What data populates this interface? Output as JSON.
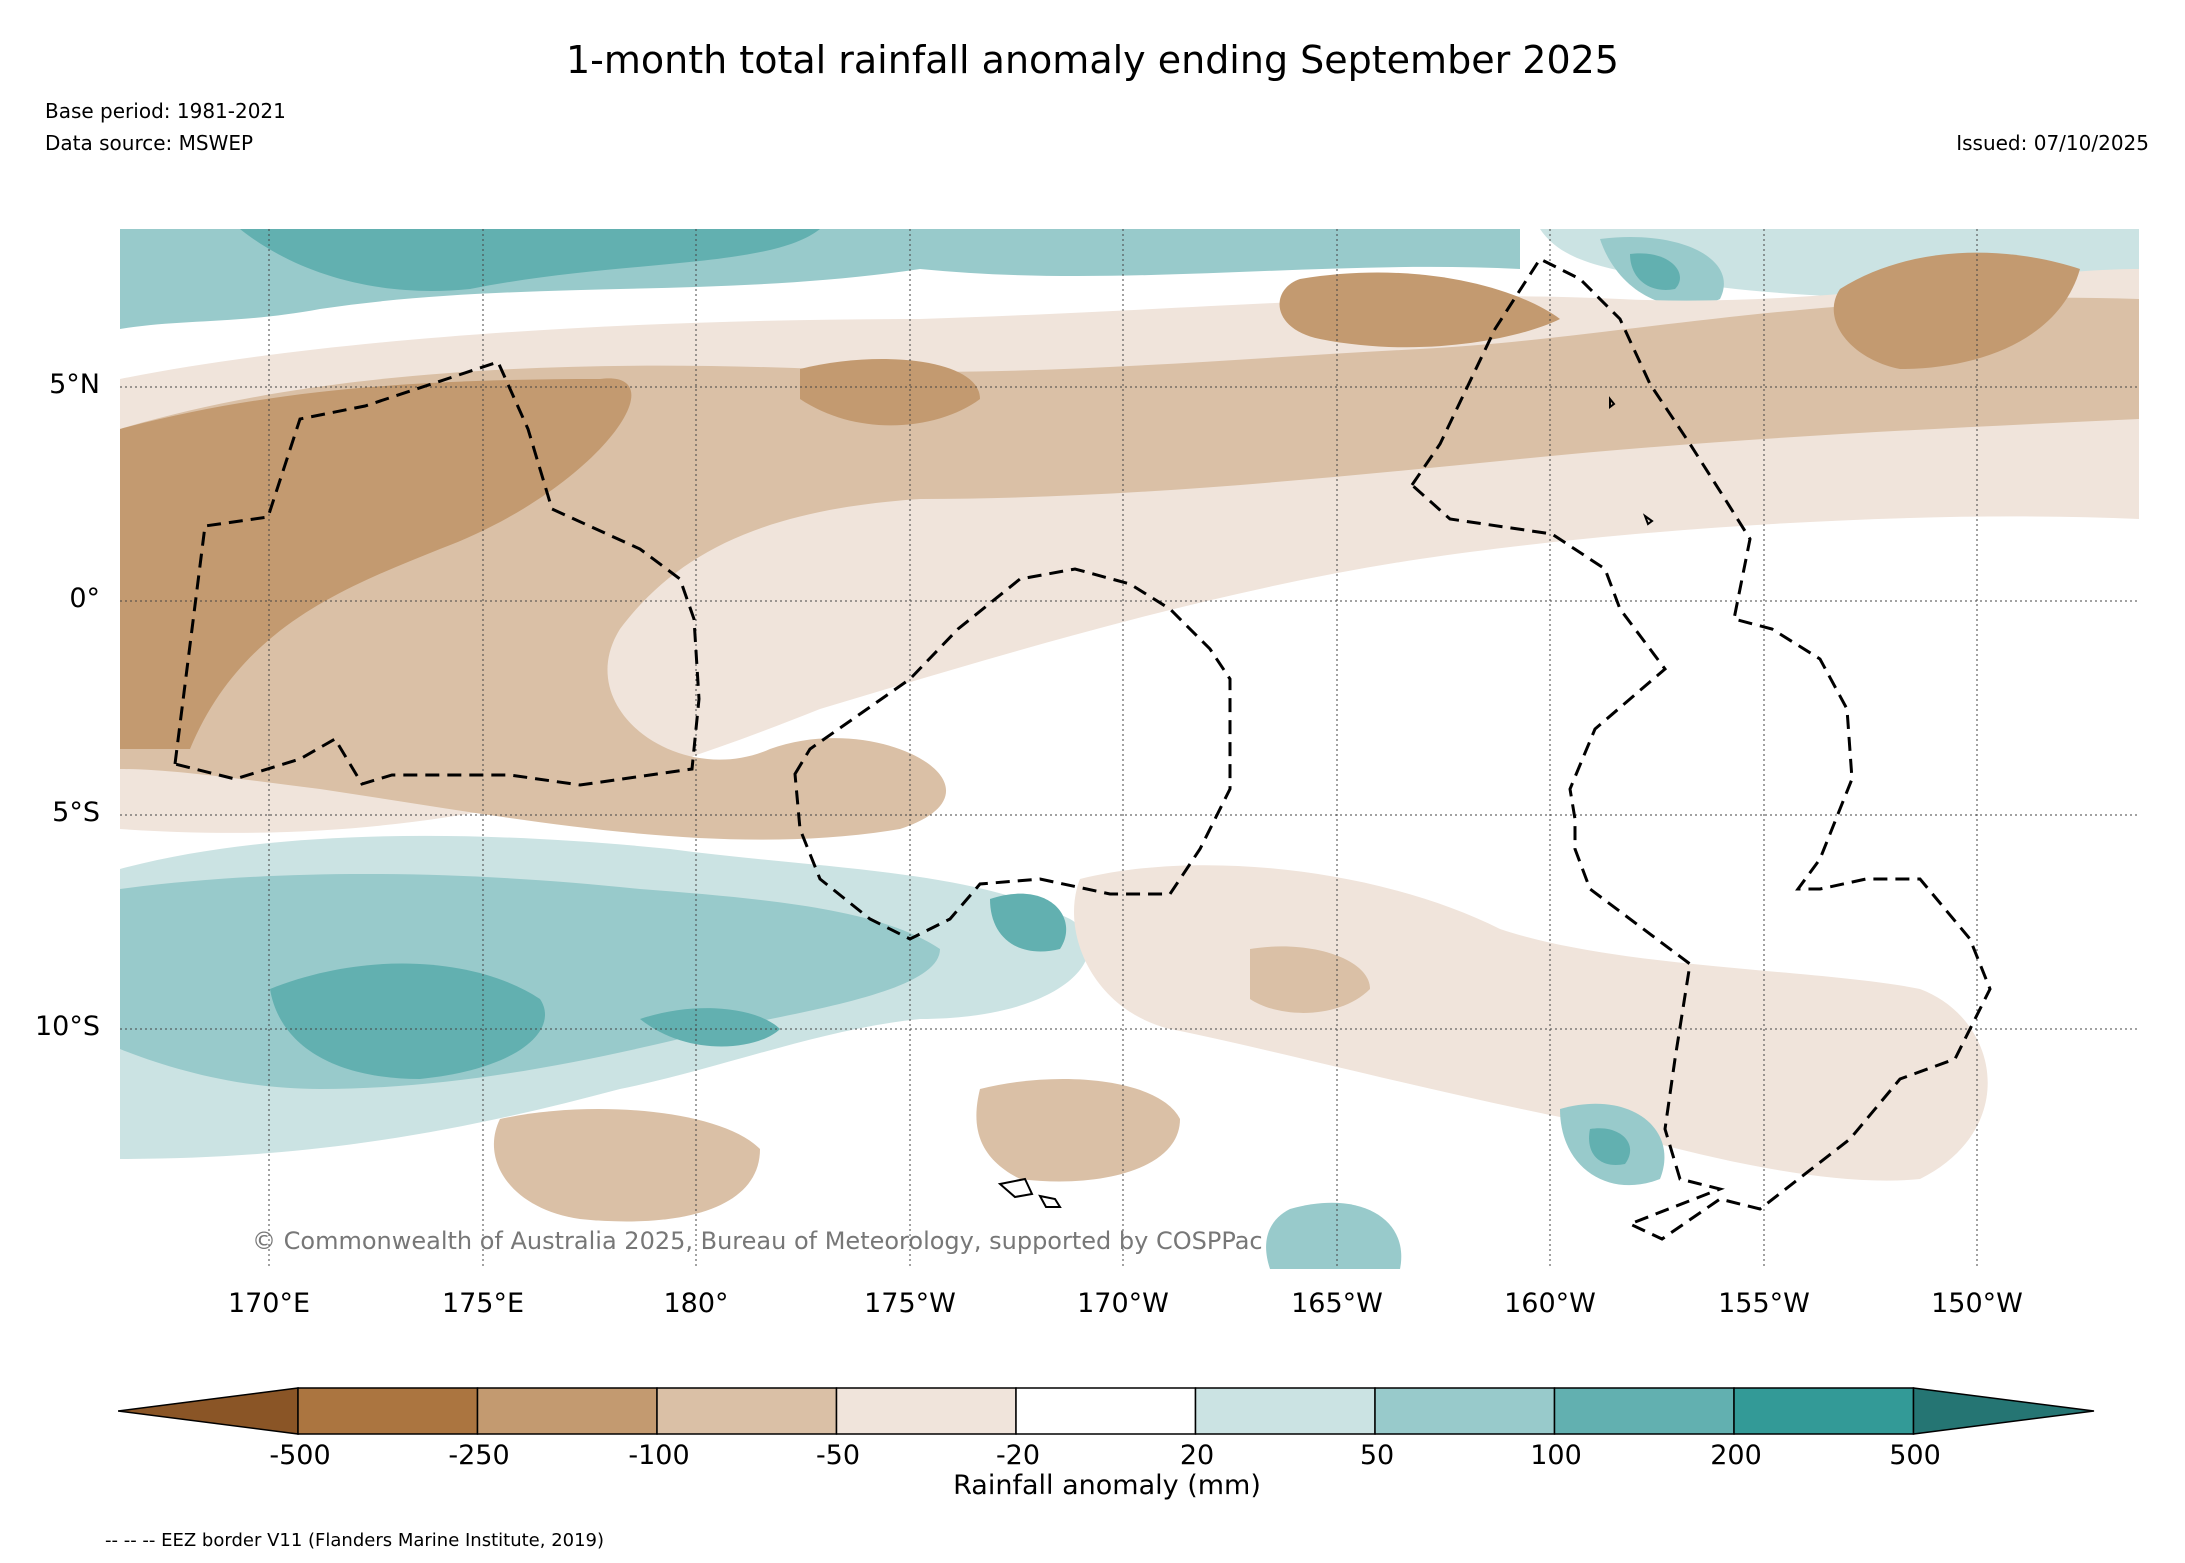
{
  "title": "1-month total rainfall anomaly ending September 2025",
  "base_period": "Base period: 1981-2021",
  "data_source": "Data source: MSWEP",
  "issued": "Issued: 07/10/2025",
  "copyright": "© Commonwealth of Australia 2025, Bureau of Meteorology, supported by COSPPac",
  "map": {
    "lat_labels": [
      "5°N",
      "0°",
      "5°S",
      "10°S"
    ],
    "lon_labels": [
      "170°E",
      "175°E",
      "180°",
      "175°W",
      "170°W",
      "165°W",
      "160°W",
      "155°W",
      "150°W"
    ]
  },
  "colorbar": {
    "ticks": [
      "-500",
      "-250",
      "-100",
      "-50",
      "-20",
      "20",
      "50",
      "100",
      "200",
      "500"
    ],
    "label": "Rainfall anomaly (mm)",
    "colors": [
      "#8a5526",
      "#ab7540",
      "#c39a70",
      "#dac0a6",
      "#f0e4db",
      "#ffffff",
      "#cbe3e3",
      "#98cacb",
      "#62b0b0",
      "#339a97",
      "#257573"
    ]
  },
  "footnote": "-- -- -- EEZ border V11 (Flanders Marine Institute, 2019)"
}
